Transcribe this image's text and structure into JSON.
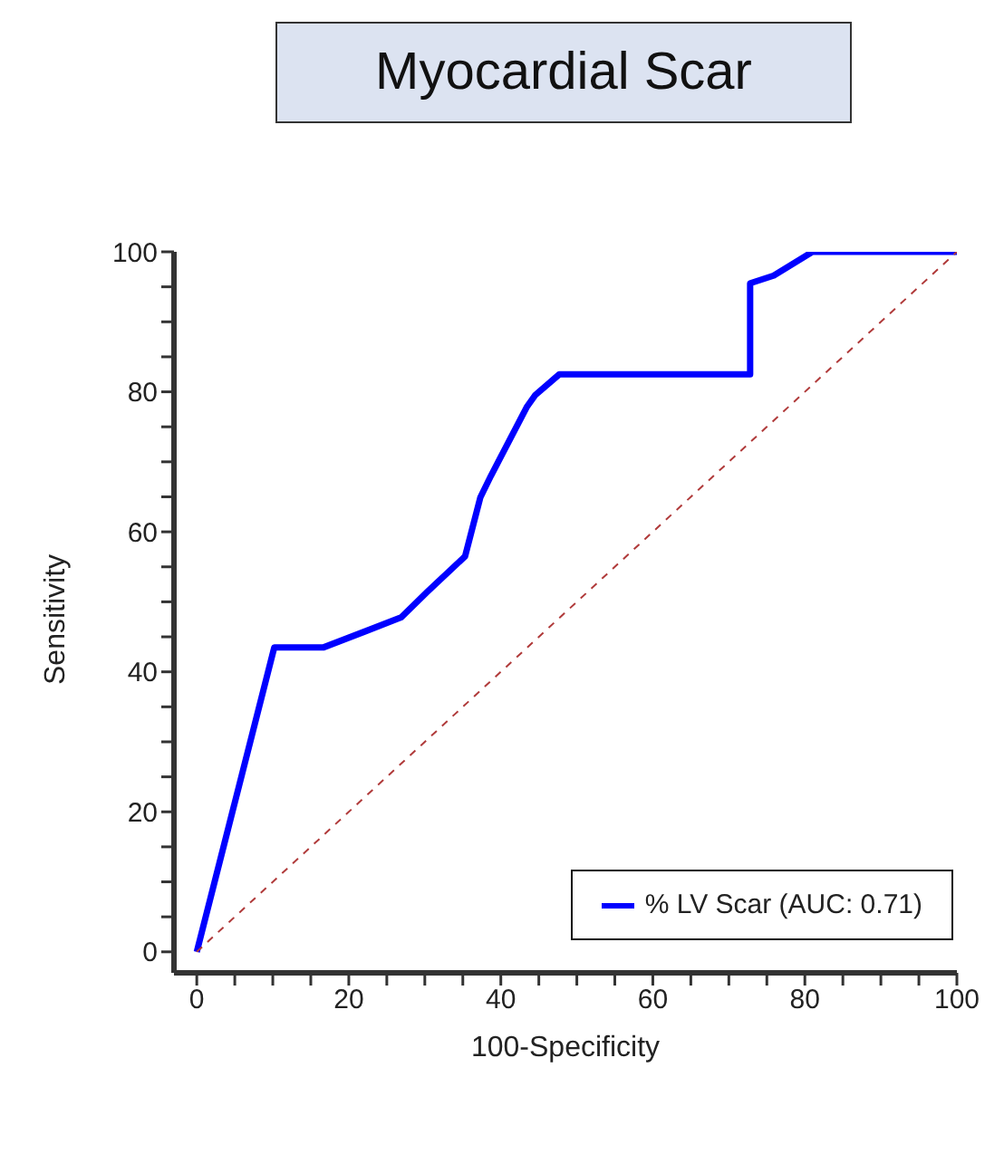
{
  "chart_data": {
    "type": "line",
    "title": "Myocardial Scar",
    "xlabel": "100-Specificity",
    "ylabel": "Sensitivity",
    "xlim": [
      -3,
      100
    ],
    "ylim": [
      -3,
      100
    ],
    "xticks": [
      0,
      {
        "value": 5,
        "label": null
      },
      {
        "value": 10,
        "label": null
      },
      {
        "value": 15,
        "label": null
      },
      20,
      {
        "value": 25,
        "label": null
      },
      {
        "value": 30,
        "label": null
      },
      {
        "value": 35,
        "label": null
      },
      40,
      {
        "value": 45,
        "label": null
      },
      {
        "value": 50,
        "label": null
      },
      {
        "value": 55,
        "label": null
      },
      60,
      {
        "value": 65,
        "label": null
      },
      {
        "value": 70,
        "label": null
      },
      {
        "value": 75,
        "label": null
      },
      80,
      {
        "value": 85,
        "label": null
      },
      {
        "value": 90,
        "label": null
      },
      {
        "value": 95,
        "label": null
      },
      100
    ],
    "yticks": [
      0,
      {
        "value": 5,
        "label": null
      },
      {
        "value": 10,
        "label": null
      },
      {
        "value": 15,
        "label": null
      },
      20,
      {
        "value": 25,
        "label": null
      },
      {
        "value": 30,
        "label": null
      },
      {
        "value": 35,
        "label": null
      },
      40,
      {
        "value": 45,
        "label": null
      },
      {
        "value": 50,
        "label": null
      },
      {
        "value": 55,
        "label": null
      },
      60,
      {
        "value": 65,
        "label": null
      },
      {
        "value": 70,
        "label": null
      },
      {
        "value": 75,
        "label": null
      },
      80,
      {
        "value": 85,
        "label": null
      },
      {
        "value": 90,
        "label": null
      },
      {
        "value": 95,
        "label": null
      },
      100
    ],
    "grid": false,
    "legend": "bottom right",
    "marker": "none",
    "series": [
      {
        "name": "% LV Scar (AUC: 0.71)",
        "color": "#0000ff",
        "line_style": "solid",
        "x": [
          0,
          10.2,
          16.7,
          22.2,
          26.9,
          30.4,
          35.3,
          37.3,
          38.7,
          43.4,
          44.5,
          47.7,
          72.8,
          72.8,
          75.9,
          81,
          100
        ],
        "values": [
          0,
          43.5,
          43.5,
          45.8,
          47.8,
          51.5,
          56.5,
          64.9,
          68,
          77.8,
          79.5,
          82.5,
          82.5,
          95.5,
          96.6,
          100,
          100
        ]
      },
      {
        "color": "#b03a3a",
        "line_style": "dashed",
        "x": [
          0,
          100
        ],
        "values": [
          0,
          100
        ]
      }
    ]
  }
}
